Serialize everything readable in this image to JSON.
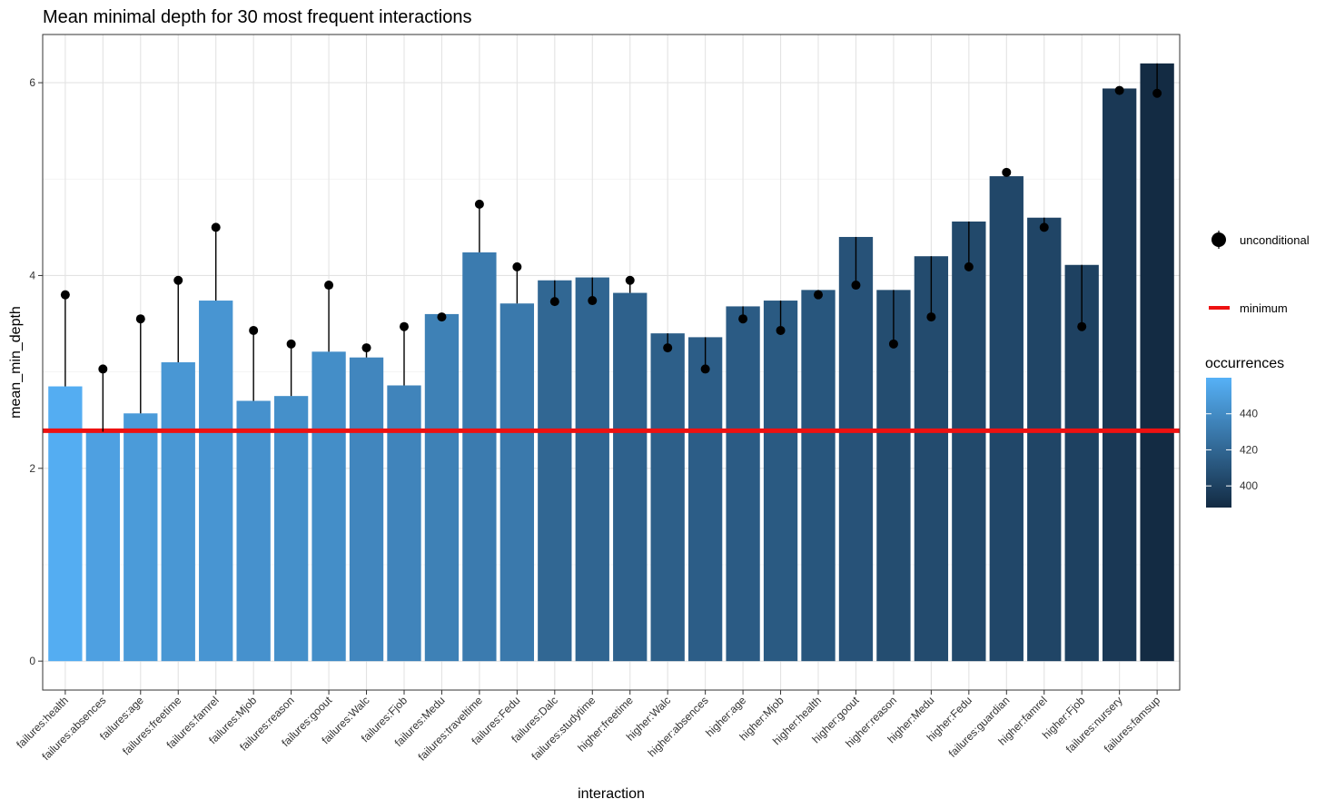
{
  "chart_data": {
    "type": "bar",
    "title": "Mean minimal depth for 30 most frequent interactions",
    "xlabel": "interaction",
    "ylabel": "mean_min_depth",
    "ylim": [
      -0.3,
      6.5
    ],
    "yticks": [
      0,
      2,
      4,
      6
    ],
    "grid": true,
    "categories": [
      "failures:health",
      "failures:absences",
      "failures:age",
      "failures:freetime",
      "failures:famrel",
      "failures:Mjob",
      "failures:reason",
      "failures:goout",
      "failures:Walc",
      "failures:Fjob",
      "failures:Medu",
      "failures:traveltime",
      "failures:Fedu",
      "failures:Dalc",
      "failures:studytime",
      "higher:freetime",
      "higher:Walc",
      "higher:absences",
      "higher:age",
      "higher:Mjob",
      "higher:health",
      "higher:goout",
      "higher:reason",
      "higher:Medu",
      "higher:Fedu",
      "failures:guardian",
      "higher:famrel",
      "higher:Fjob",
      "failures:nursery",
      "failures:famsup"
    ],
    "series": [
      {
        "name": "mean_min_depth",
        "values": [
          2.85,
          2.38,
          2.57,
          3.1,
          3.74,
          2.7,
          2.75,
          3.21,
          3.15,
          2.86,
          3.6,
          4.24,
          3.71,
          3.95,
          3.98,
          3.82,
          3.4,
          3.36,
          3.68,
          3.74,
          3.85,
          4.4,
          3.85,
          4.2,
          4.56,
          5.03,
          4.6,
          4.11,
          5.94,
          6.2
        ]
      },
      {
        "name": "unconditional",
        "values": [
          3.8,
          3.03,
          3.55,
          3.95,
          4.5,
          3.43,
          3.29,
          3.9,
          3.25,
          3.47,
          3.57,
          4.74,
          4.09,
          3.73,
          3.74,
          3.95,
          3.25,
          3.03,
          3.55,
          3.43,
          3.8,
          3.9,
          3.29,
          3.57,
          4.09,
          5.07,
          4.5,
          3.47,
          5.92,
          5.89
        ]
      },
      {
        "name": "occurrences",
        "values": [
          458,
          451,
          448,
          446,
          445,
          443,
          442,
          441,
          437,
          436,
          434,
          431,
          430,
          420,
          419,
          417,
          416,
          415,
          414,
          413,
          411,
          409,
          406,
          405,
          404,
          403,
          402,
          400,
          395,
          388
        ]
      }
    ],
    "minimum_line": 2.39,
    "legend": {
      "placement": "right",
      "unconditional_label": "unconditional",
      "minimum_label": "minimum",
      "gradient_title": "occurrences",
      "gradient_ticks": [
        400,
        420,
        440
      ],
      "gradient_range": [
        388,
        460
      ],
      "color_low": "#132B43",
      "color_high": "#56B1F7",
      "minimum_color": "#ee1111",
      "point_color": "#000000"
    }
  }
}
